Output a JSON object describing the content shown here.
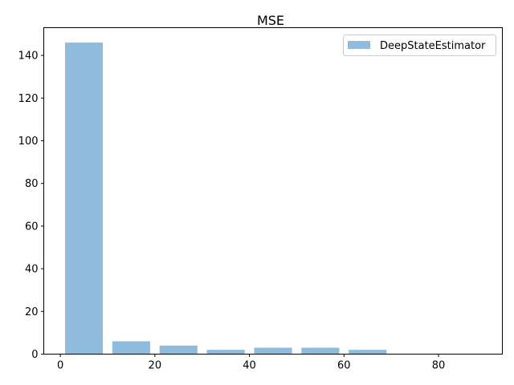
{
  "chart_data": {
    "type": "bar",
    "title": "MSE",
    "xlabel": "",
    "ylabel": "",
    "xlim": [
      -3.5,
      93.5
    ],
    "ylim": [
      0,
      153
    ],
    "xticks": [
      0,
      20,
      40,
      60,
      80
    ],
    "yticks": [
      0,
      20,
      40,
      60,
      80,
      100,
      120,
      140
    ],
    "bar_width": 8,
    "series": [
      {
        "name": "DeepStateEstimator",
        "color": "#8fbbdc",
        "x": [
          5,
          15,
          25,
          35,
          45,
          55,
          65,
          75,
          85
        ],
        "values": [
          146,
          6,
          4,
          2,
          3,
          3,
          2,
          0,
          0
        ]
      }
    ],
    "legend_position": "upper right",
    "grid": false
  }
}
